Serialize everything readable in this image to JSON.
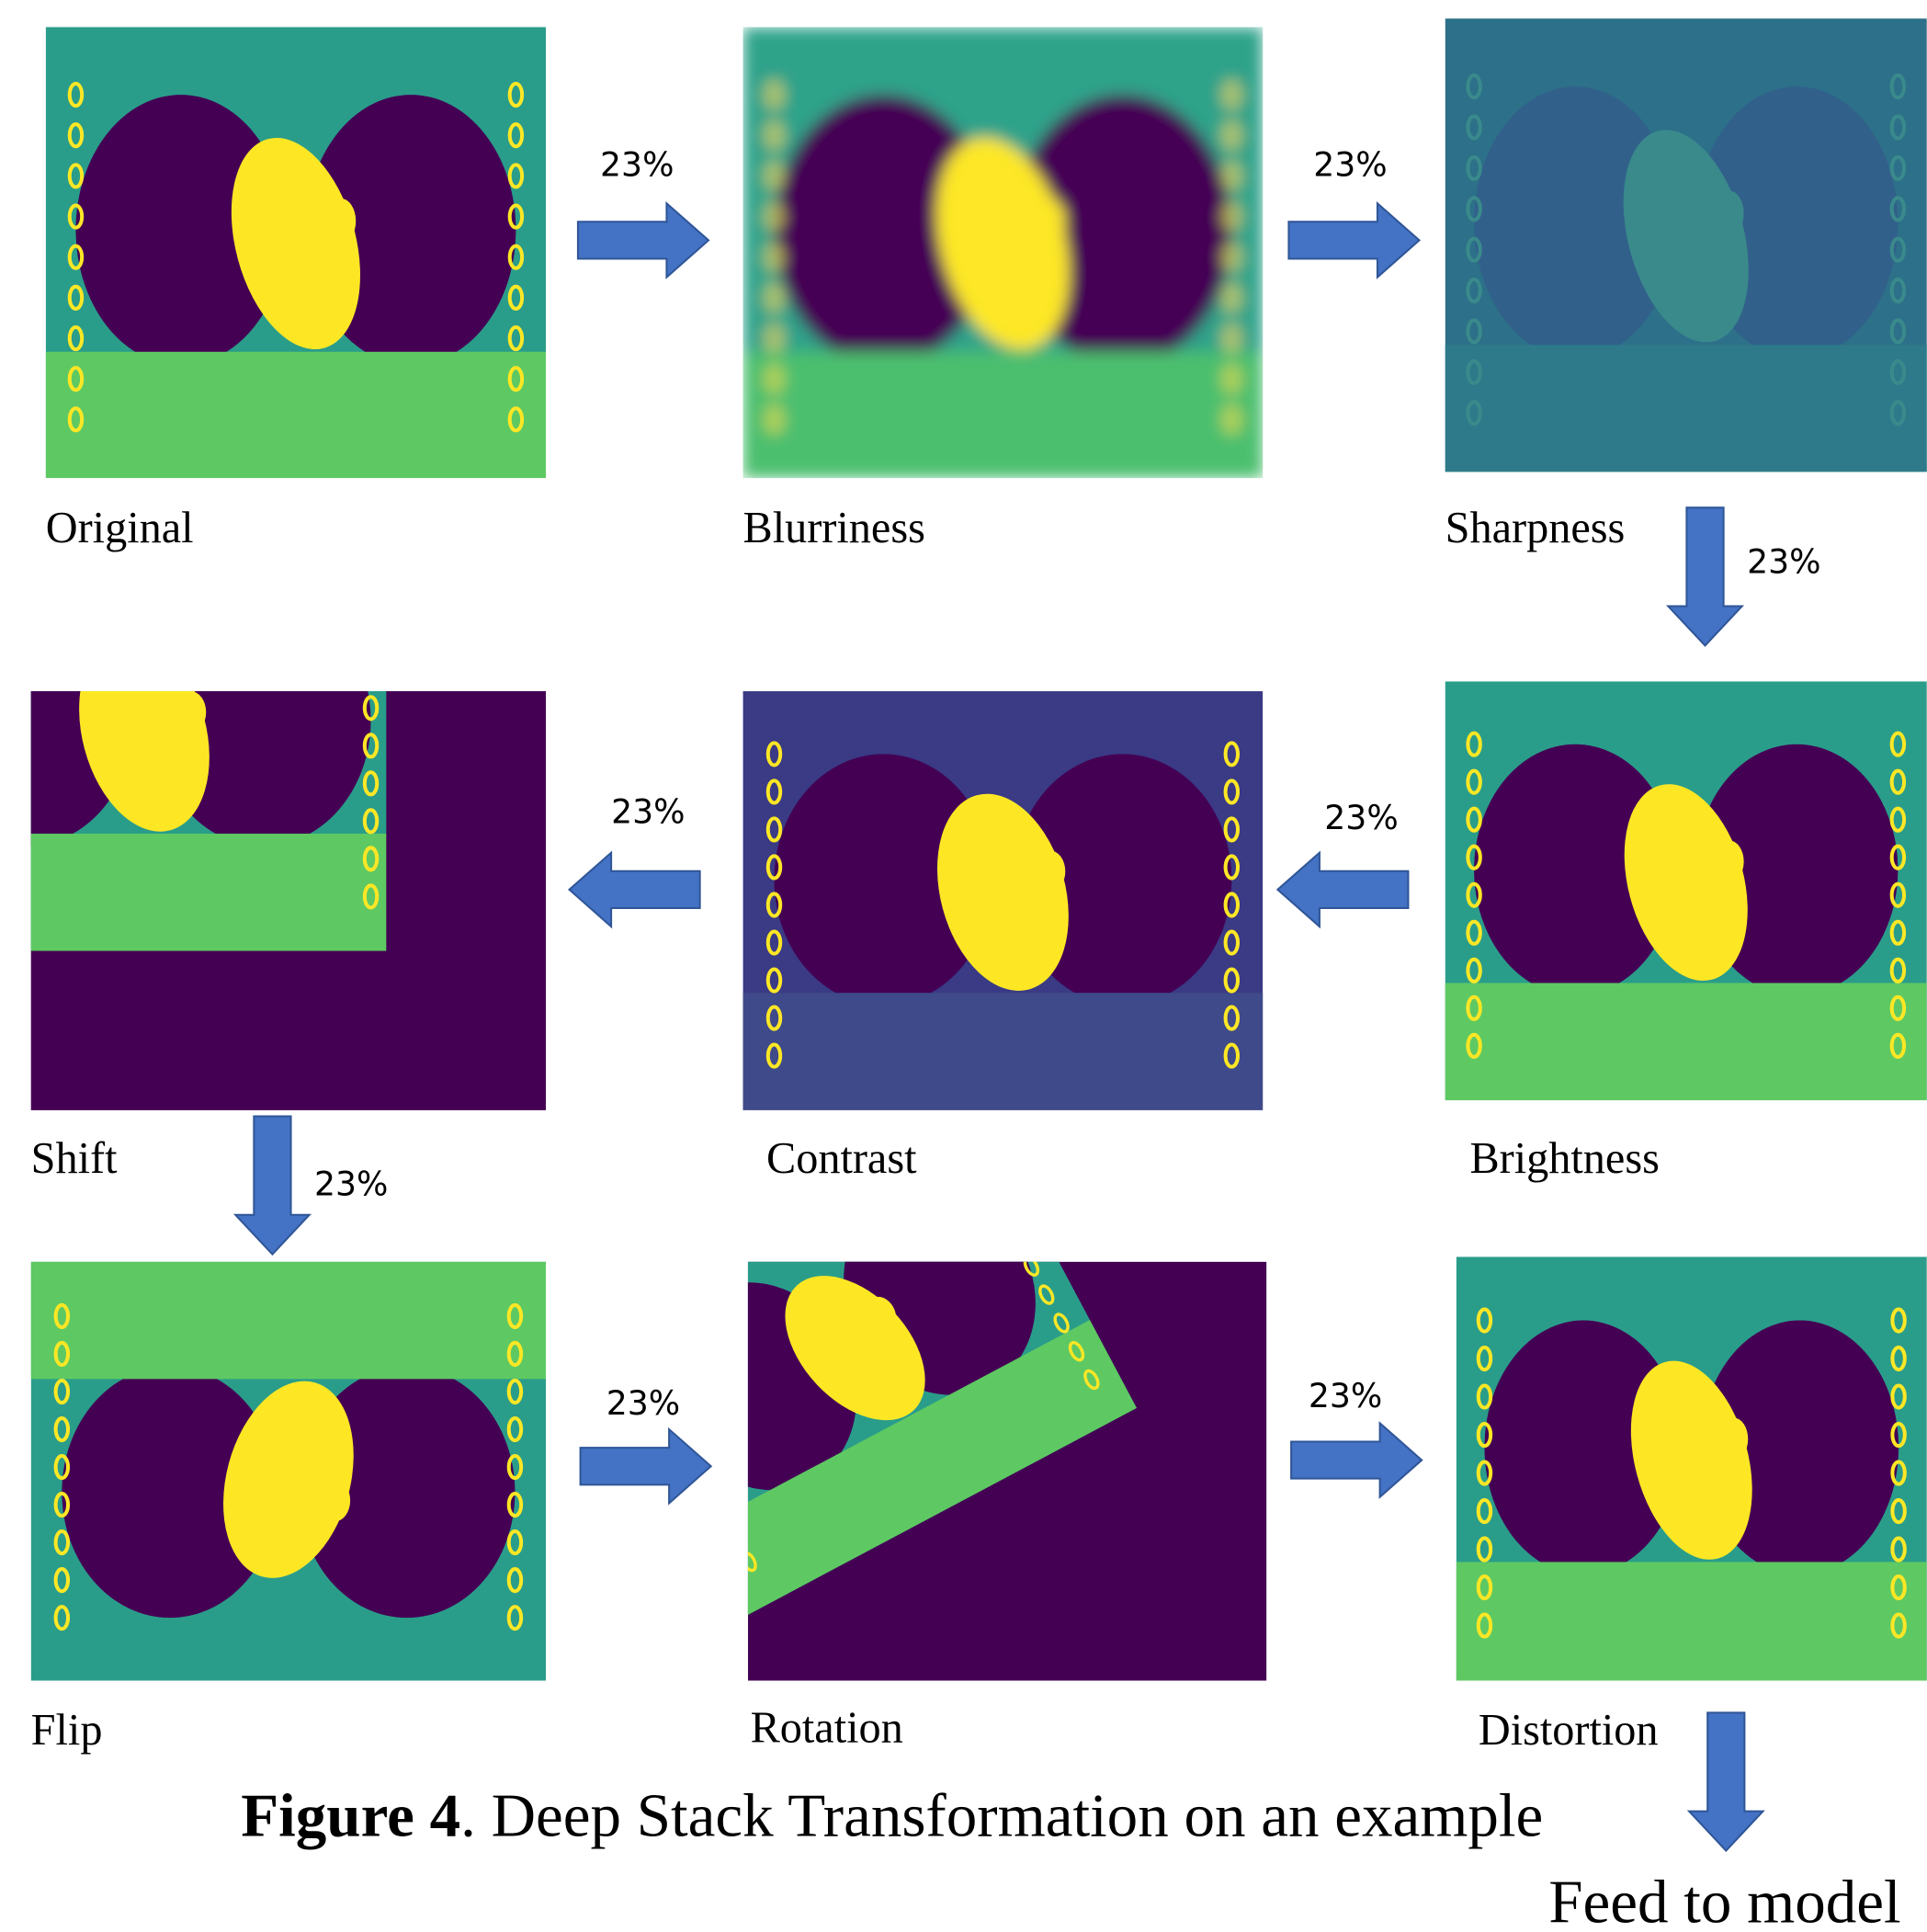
{
  "panels": [
    {
      "label": "Original"
    },
    {
      "label": "Blurriness"
    },
    {
      "label": "Sharpness"
    },
    {
      "label": "Brightness"
    },
    {
      "label": "Contrast"
    },
    {
      "label": "Shift"
    },
    {
      "label": "Flip"
    },
    {
      "label": "Rotation"
    },
    {
      "label": "Distortion"
    }
  ],
  "arrows": [
    {
      "label": "23%"
    },
    {
      "label": "23%"
    },
    {
      "label": "23%"
    },
    {
      "label": "23%"
    },
    {
      "label": "23%"
    },
    {
      "label": "23%"
    },
    {
      "label": "23%"
    },
    {
      "label": "23%"
    }
  ],
  "caption": {
    "bold": "Figure 4",
    "text": ". Deep Stack Transformation on an example"
  },
  "output": "Feed to model"
}
